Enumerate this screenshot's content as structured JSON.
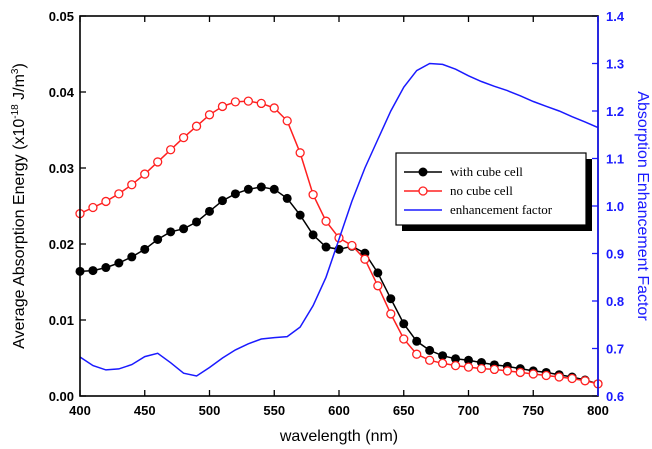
{
  "chart_data": {
    "type": "line",
    "xlabel": "wavelength (nm)",
    "ylabel_prefix": "Average Absorption Energy (x10",
    "ylabel_exp": "-18",
    "ylabel_unit": " J/m",
    "ylabel_unit_exp": "3",
    "ylabel_suffix": ")",
    "y2label": "Absorption Enhancement Factor",
    "xlim": [
      400,
      800
    ],
    "ylim": [
      0,
      0.05
    ],
    "y2lim": [
      0.6,
      1.4
    ],
    "x_ticks": [
      "400",
      "450",
      "500",
      "550",
      "600",
      "650",
      "700",
      "750",
      "800"
    ],
    "y_ticks": [
      "0.00",
      "0.01",
      "0.02",
      "0.03",
      "0.04",
      "0.05"
    ],
    "y2_ticks": [
      "0.6",
      "0.7",
      "0.8",
      "0.9",
      "1.0",
      "1.1",
      "1.2",
      "1.3",
      "1.4"
    ],
    "legend_position": "right",
    "colors": {
      "with_cube": "#000000",
      "no_cube": "#ff2020",
      "enhancement": "#1a1aff"
    },
    "series": [
      {
        "name": "with cube cell",
        "axis": "left",
        "marker": "filled-circle",
        "x": [
          400,
          410,
          420,
          430,
          440,
          450,
          460,
          470,
          480,
          490,
          500,
          510,
          520,
          530,
          540,
          550,
          560,
          570,
          580,
          590,
          600,
          610,
          620,
          630,
          640,
          650,
          660,
          670,
          680,
          690,
          700,
          710,
          720,
          730,
          740,
          750,
          760,
          770,
          780,
          790,
          800
        ],
        "y": [
          0.0164,
          0.0165,
          0.0169,
          0.0175,
          0.0183,
          0.0193,
          0.0206,
          0.0216,
          0.022,
          0.0229,
          0.0243,
          0.0257,
          0.0266,
          0.0272,
          0.0275,
          0.0272,
          0.026,
          0.0238,
          0.0212,
          0.0196,
          0.0193,
          0.0197,
          0.0188,
          0.0162,
          0.0128,
          0.0095,
          0.0072,
          0.006,
          0.0053,
          0.0049,
          0.0047,
          0.0044,
          0.0041,
          0.0039,
          0.0036,
          0.0033,
          0.0031,
          0.0028,
          0.0025,
          0.0021,
          0.0016
        ]
      },
      {
        "name": "no cube cell",
        "axis": "left",
        "marker": "open-circle",
        "x": [
          400,
          410,
          420,
          430,
          440,
          450,
          460,
          470,
          480,
          490,
          500,
          510,
          520,
          530,
          540,
          550,
          560,
          570,
          580,
          590,
          600,
          610,
          620,
          630,
          640,
          650,
          660,
          670,
          680,
          690,
          700,
          710,
          720,
          730,
          740,
          750,
          760,
          770,
          780,
          790,
          800
        ],
        "y": [
          0.024,
          0.0248,
          0.0256,
          0.0266,
          0.0278,
          0.0292,
          0.0308,
          0.0324,
          0.034,
          0.0355,
          0.037,
          0.0381,
          0.0387,
          0.0388,
          0.0385,
          0.0379,
          0.0362,
          0.032,
          0.0265,
          0.023,
          0.0208,
          0.0198,
          0.018,
          0.0145,
          0.0108,
          0.0075,
          0.0055,
          0.0047,
          0.0043,
          0.004,
          0.0038,
          0.0036,
          0.0035,
          0.0033,
          0.0031,
          0.0029,
          0.0027,
          0.0025,
          0.0023,
          0.002,
          0.0016
        ]
      },
      {
        "name": "enhancement factor",
        "axis": "right",
        "marker": "none",
        "x": [
          400,
          410,
          420,
          430,
          440,
          450,
          460,
          470,
          480,
          490,
          500,
          510,
          520,
          530,
          540,
          550,
          560,
          570,
          580,
          590,
          600,
          610,
          620,
          630,
          640,
          650,
          660,
          670,
          680,
          690,
          700,
          710,
          720,
          730,
          740,
          750,
          760,
          770,
          780,
          790,
          800
        ],
        "y": [
          0.682,
          0.664,
          0.655,
          0.657,
          0.666,
          0.683,
          0.69,
          0.67,
          0.648,
          0.642,
          0.66,
          0.68,
          0.697,
          0.71,
          0.72,
          0.723,
          0.725,
          0.745,
          0.79,
          0.85,
          0.93,
          1.01,
          1.08,
          1.14,
          1.2,
          1.25,
          1.285,
          1.3,
          1.298,
          1.288,
          1.274,
          1.262,
          1.252,
          1.243,
          1.232,
          1.22,
          1.21,
          1.2,
          1.188,
          1.177,
          1.165
        ]
      }
    ]
  }
}
